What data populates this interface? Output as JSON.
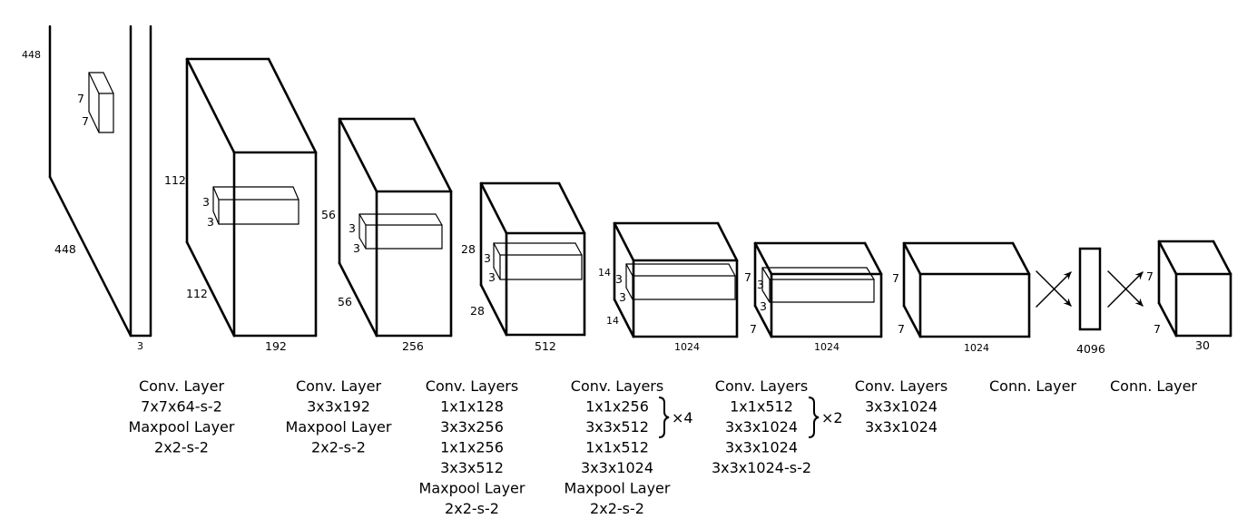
{
  "colors": {
    "stroke": "#000000",
    "background": "#ffffff"
  },
  "dims": {
    "input": {
      "height": "448",
      "width": "448",
      "depth": "3",
      "kernel_h": "7",
      "kernel_w": "7"
    },
    "b2": {
      "height": "112",
      "width": "112",
      "depth": "192",
      "kernel_h": "3",
      "kernel_w": "3"
    },
    "b3": {
      "height": "56",
      "width": "56",
      "depth": "256",
      "kernel_h": "3",
      "kernel_w": "3"
    },
    "b4": {
      "height": "28",
      "width": "28",
      "depth": "512",
      "kernel_h": "3",
      "kernel_w": "3"
    },
    "b5": {
      "height": "14",
      "width": "14",
      "depth": "1024",
      "kernel_h": "3",
      "kernel_w": "3"
    },
    "b6": {
      "height": "7",
      "width": "7",
      "depth": "1024",
      "kernel_h": "3",
      "kernel_w": "3"
    },
    "b7": {
      "height": "7",
      "width": "7",
      "depth": "1024"
    },
    "fc": {
      "depth": "4096"
    },
    "out": {
      "height": "7",
      "width": "7",
      "depth": "30"
    }
  },
  "captions": [
    {
      "lines": [
        "Conv. Layer",
        "7x7x64-s-2",
        "Maxpool Layer",
        "2x2-s-2"
      ]
    },
    {
      "lines": [
        "Conv. Layer",
        "3x3x192",
        "Maxpool Layer",
        "2x2-s-2"
      ]
    },
    {
      "lines": [
        "Conv. Layers",
        "1x1x128",
        "3x3x256",
        "1x1x256",
        "3x3x512",
        "Maxpool Layer",
        "2x2-s-2"
      ]
    },
    {
      "lines": [
        "Conv. Layers",
        "1x1x256",
        "3x3x512",
        "1x1x512",
        "3x3x1024",
        "Maxpool Layer",
        "2x2-s-2"
      ],
      "repeat": "×4"
    },
    {
      "lines": [
        "Conv. Layers",
        "1x1x512",
        "3x3x1024",
        "3x3x1024",
        "3x3x1024-s-2"
      ],
      "repeat": "×2"
    },
    {
      "lines": [
        "Conv. Layers",
        "3x3x1024",
        "3x3x1024"
      ]
    },
    {
      "lines": [
        "Conn. Layer"
      ]
    },
    {
      "lines": [
        "Conn. Layer"
      ]
    }
  ]
}
